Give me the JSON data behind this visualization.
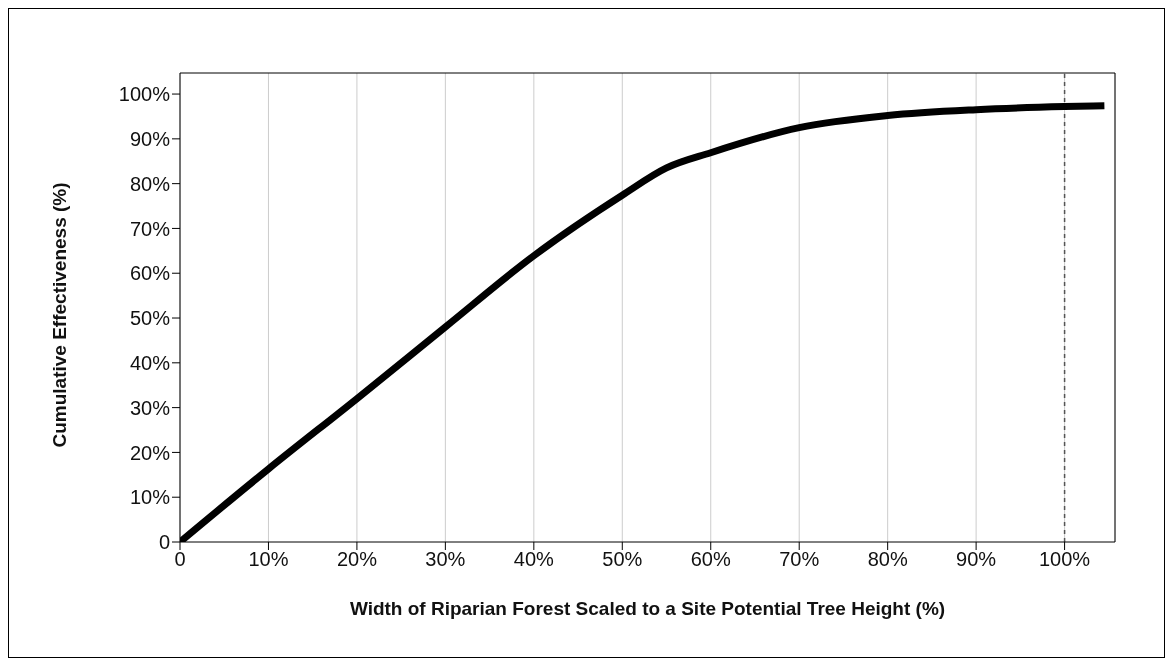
{
  "chart_data": {
    "type": "line",
    "xlabel": "Width of Riparian Forest Scaled to a Site Potential Tree Height (%)",
    "ylabel": "Cumulative Effectiveness (%)",
    "x": [
      0,
      10,
      20,
      30,
      40,
      50,
      55,
      60,
      70,
      80,
      90,
      100,
      104.5
    ],
    "series": [
      {
        "color": "#000000",
        "values": [
          0,
          16.3,
          32,
          48,
          63.9,
          77.4,
          83.5,
          86.9,
          92.5,
          95.2,
          96.5,
          97.2,
          97.4
        ]
      }
    ],
    "xlim": [
      0,
      105.7
    ],
    "ylim": [
      0,
      104.7
    ],
    "xticks": [
      {
        "value": 0,
        "label": "0"
      },
      {
        "value": 10,
        "label": "10%"
      },
      {
        "value": 20,
        "label": "20%"
      },
      {
        "value": 30,
        "label": "30%"
      },
      {
        "value": 40,
        "label": "40%"
      },
      {
        "value": 50,
        "label": "50%"
      },
      {
        "value": 60,
        "label": "60%"
      },
      {
        "value": 70,
        "label": "70%"
      },
      {
        "value": 80,
        "label": "80%"
      },
      {
        "value": 90,
        "label": "90%"
      },
      {
        "value": 100,
        "label": "100%"
      }
    ],
    "yticks": [
      {
        "value": 0,
        "label": "0"
      },
      {
        "value": 10,
        "label": "10%"
      },
      {
        "value": 20,
        "label": "20%"
      },
      {
        "value": 30,
        "label": "30%"
      },
      {
        "value": 40,
        "label": "40%"
      },
      {
        "value": 50,
        "label": "50%"
      },
      {
        "value": 60,
        "label": "60%"
      },
      {
        "value": 70,
        "label": "70%"
      },
      {
        "value": 80,
        "label": "80%"
      },
      {
        "value": 90,
        "label": "90%"
      },
      {
        "value": 100,
        "label": "100%"
      }
    ],
    "grid": "x",
    "marker": "none",
    "line_style": "solid",
    "ref_lines": [
      {
        "axis": "x",
        "value": 100,
        "color": "#555555",
        "line_style": "dashed"
      }
    ]
  }
}
